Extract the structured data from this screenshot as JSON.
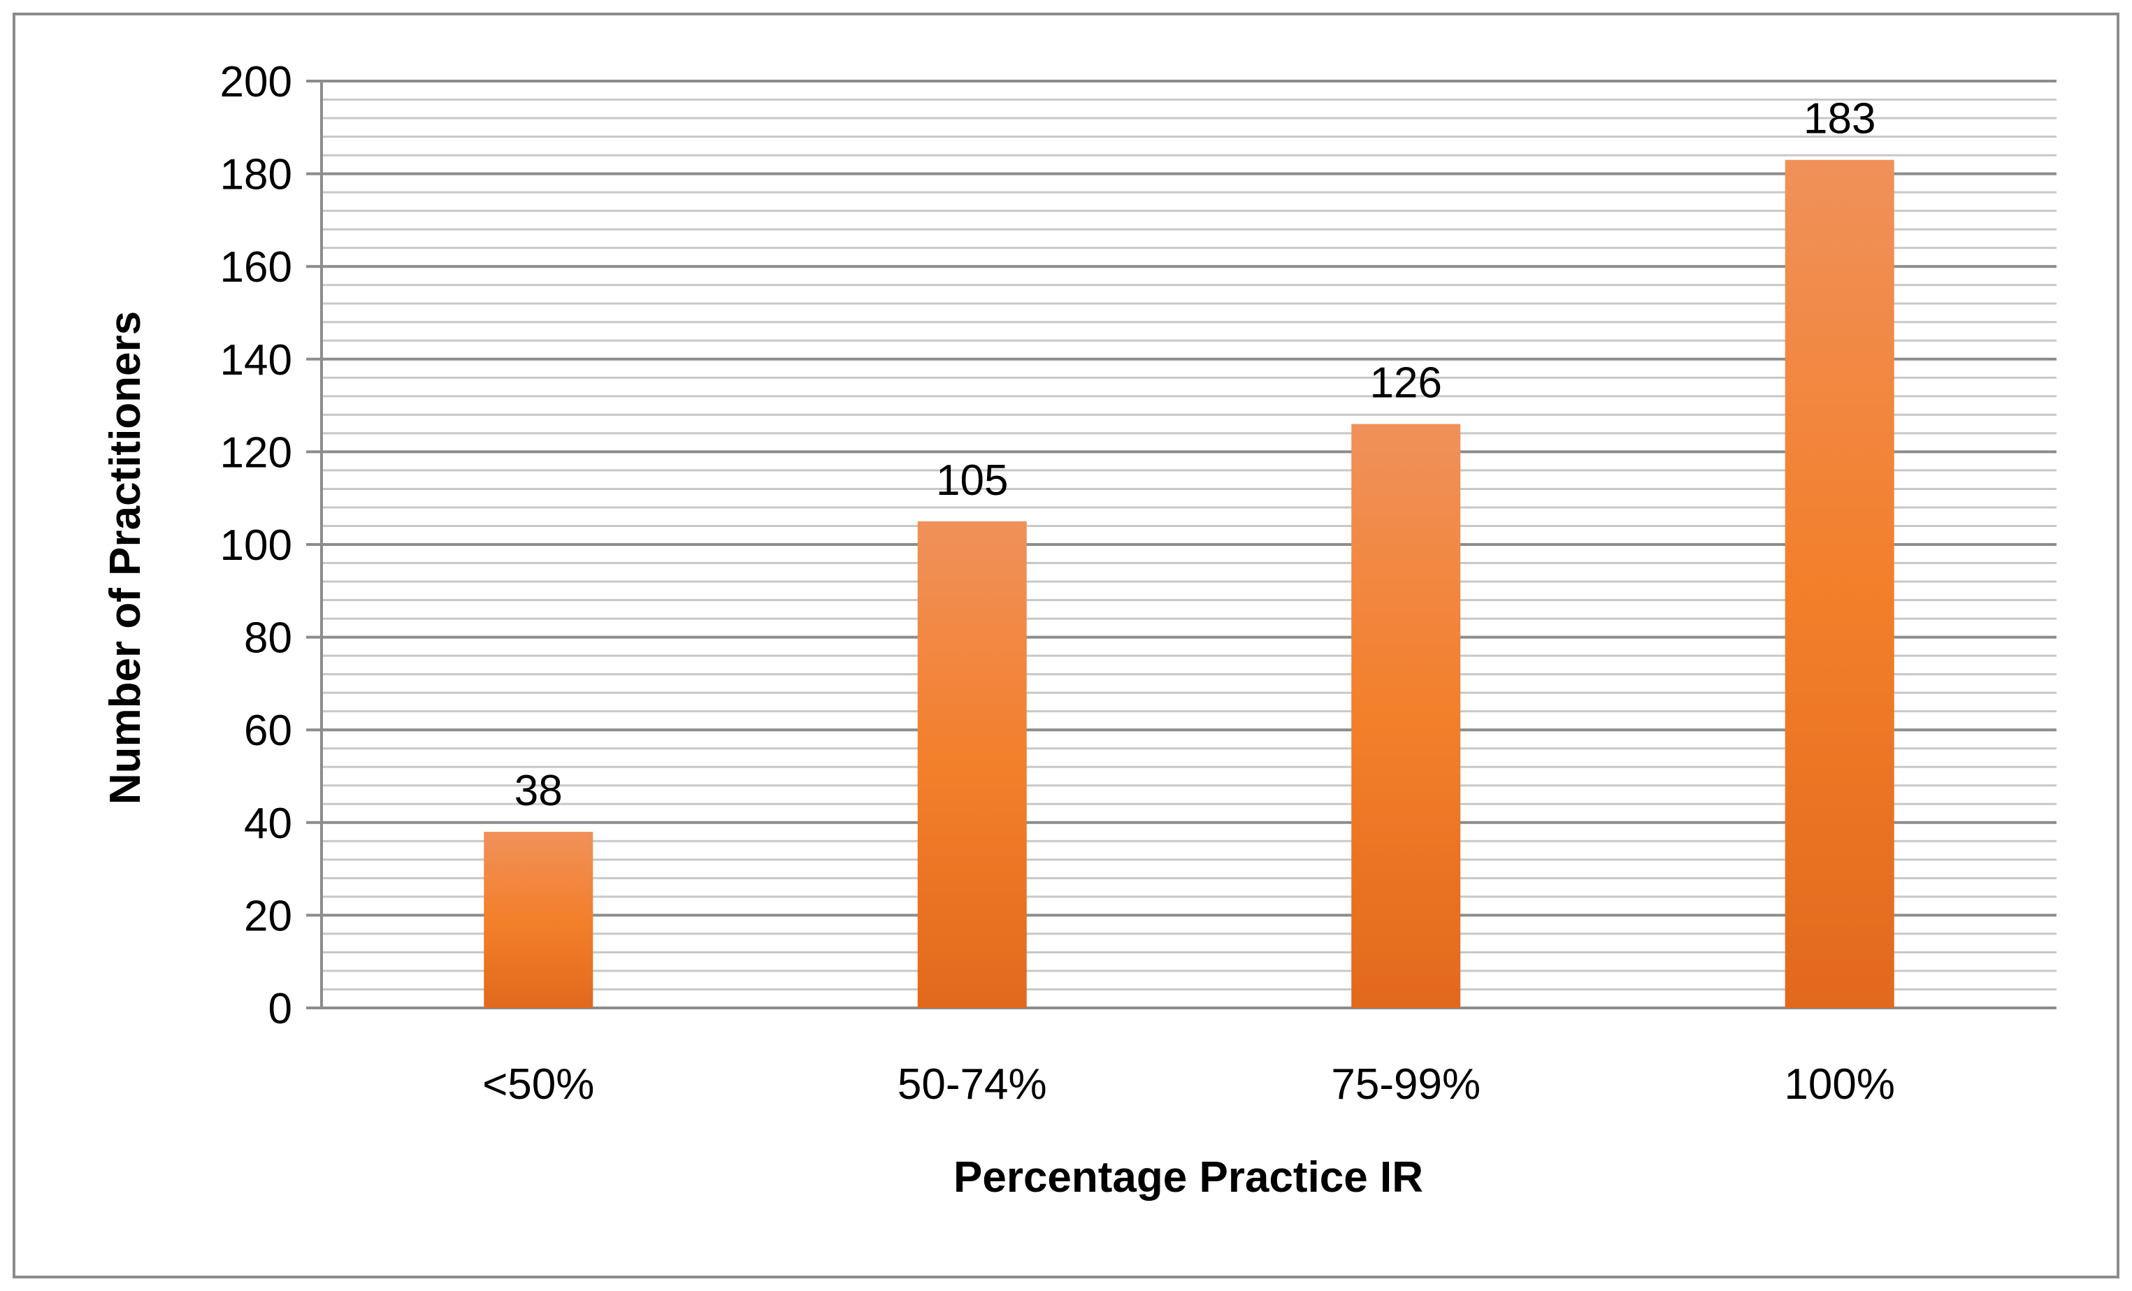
{
  "chart_data": {
    "type": "bar",
    "categories": [
      "<50%",
      "50-74%",
      "75-99%",
      "100%"
    ],
    "values": [
      38,
      105,
      126,
      183
    ],
    "data_labels": [
      "38",
      "105",
      "126",
      "183"
    ],
    "title": "",
    "xlabel": "Percentage Practice IR",
    "ylabel": "Number of Practitioners",
    "ylim": [
      0,
      200
    ],
    "y_ticks": [
      0,
      20,
      40,
      60,
      80,
      100,
      120,
      140,
      160,
      180,
      200
    ],
    "y_tick_labels": [
      "0",
      "20",
      "40",
      "60",
      "80",
      "100",
      "120",
      "140",
      "160",
      "180",
      "200"
    ],
    "grid": true,
    "minor_grid_step": 4,
    "legend": "none",
    "colors": {
      "bar_top": "#f0915a",
      "bar_mid": "#f37f2b",
      "bar_bottom": "#e2691c",
      "major_grid": "#8c8c8c",
      "minor_grid": "#c8c8c8",
      "axis": "#8c8c8c",
      "frame": "#8c8c8c"
    }
  }
}
